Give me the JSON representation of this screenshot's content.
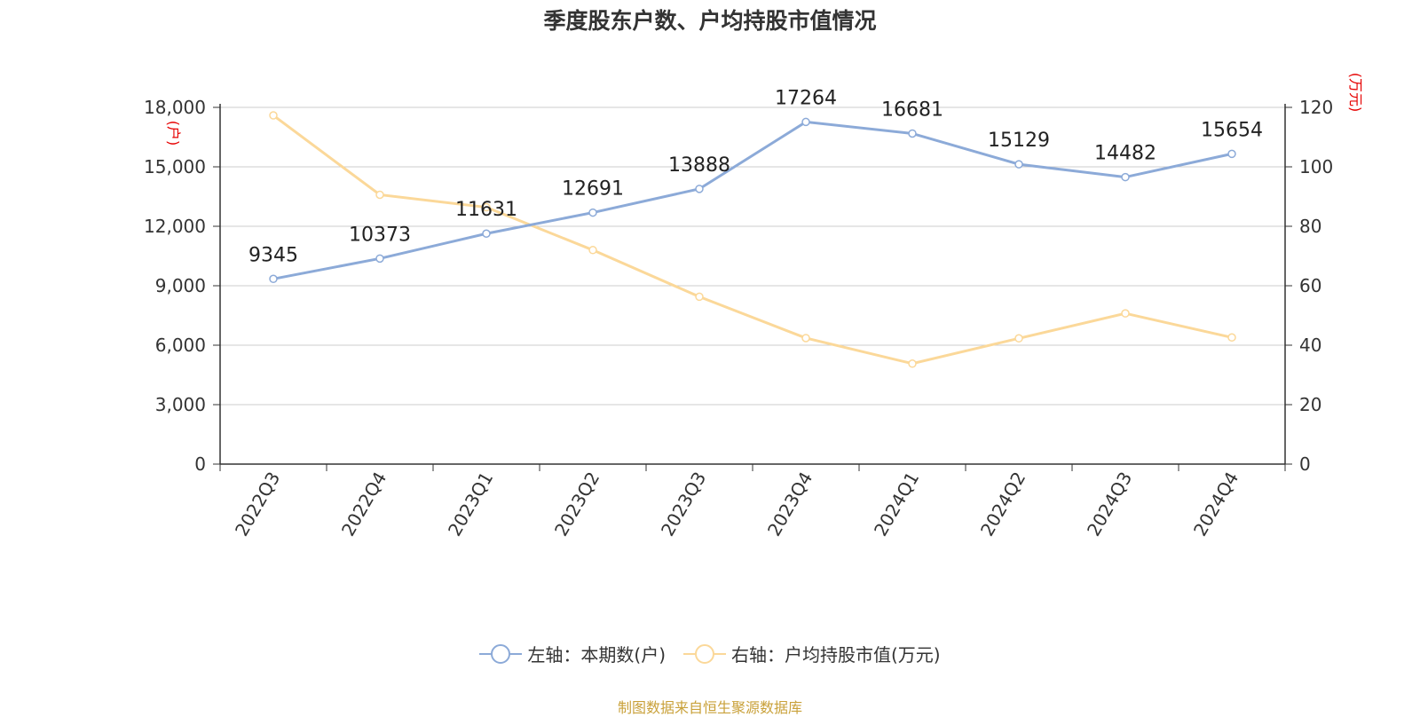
{
  "title": "季度股东户数、户均持股市值情况",
  "source": "制图数据来自恒生聚源数据库",
  "colors": {
    "left_series": "#8caad8",
    "right_series": "#fbd899",
    "unit_label": "#e60000",
    "axis": "#333333",
    "grid": "#cccccc"
  },
  "chart_data": {
    "type": "line",
    "categories": [
      "2022Q3",
      "2022Q4",
      "2023Q1",
      "2023Q2",
      "2023Q3",
      "2023Q4",
      "2024Q1",
      "2024Q2",
      "2024Q3",
      "2024Q4"
    ],
    "series": [
      {
        "name": "左轴：本期数(户)",
        "axis": "left",
        "values": [
          9345,
          10373,
          11631,
          12691,
          13888,
          17264,
          16681,
          15129,
          14482,
          15654
        ],
        "data_labels": [
          "9345",
          "10373",
          "11631",
          "12691",
          "13888",
          "17264",
          "16681",
          "15129",
          "14482",
          "15654"
        ]
      },
      {
        "name": "右轴：户均持股市值(万元)",
        "axis": "right",
        "values": [
          117.3,
          90.6,
          86.4,
          72.0,
          56.3,
          42.4,
          33.8,
          42.3,
          50.7,
          42.6
        ]
      }
    ],
    "y_left": {
      "label": "(户)",
      "ylim": [
        0,
        18000
      ],
      "ticks": [
        0,
        3000,
        6000,
        9000,
        12000,
        15000,
        18000
      ],
      "tick_labels": [
        "0",
        "3,000",
        "6,000",
        "9,000",
        "12,000",
        "15,000",
        "18,000"
      ]
    },
    "y_right": {
      "label": "(万元)",
      "ylim": [
        0,
        120
      ],
      "ticks": [
        0,
        20,
        40,
        60,
        80,
        100,
        120
      ],
      "tick_labels": [
        "0",
        "20",
        "40",
        "60",
        "80",
        "100",
        "120"
      ]
    },
    "grid": true,
    "legend_position": "bottom"
  }
}
